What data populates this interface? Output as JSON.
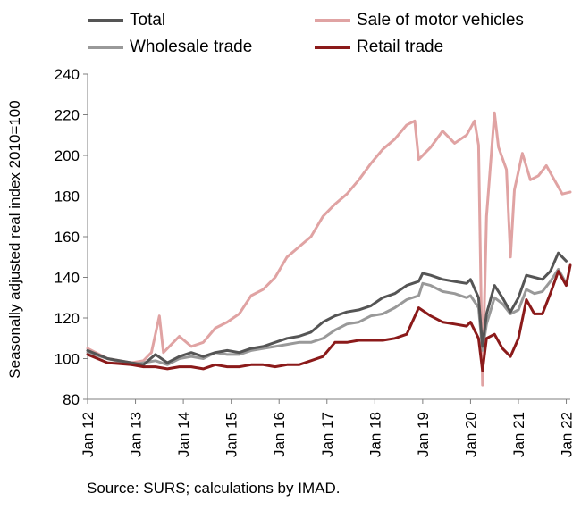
{
  "footer": {
    "source": "Source: SURS; calculations by IMAD."
  },
  "chart_data": {
    "type": "line",
    "title": "",
    "xlabel": "",
    "ylabel": "Seasonally adjusted real index 2010=100",
    "ylim": [
      80,
      240
    ],
    "yticks": [
      "80",
      "100",
      "120",
      "140",
      "160",
      "180",
      "200",
      "220",
      "240"
    ],
    "xticks": [
      "Jan 12",
      "Jan 13",
      "Jan 14",
      "Jan 15",
      "Jan 16",
      "Jan 17",
      "Jan 18",
      "Jan 19",
      "Jan 20",
      "Jan 21",
      "Jan 22"
    ],
    "x_start": "2012-01",
    "x_end": "2022-02",
    "grid": false,
    "legend": "top",
    "series": [
      {
        "name": "Total",
        "color": "#555555",
        "points": [
          [
            "2012-01",
            104
          ],
          [
            "2012-06",
            100
          ],
          [
            "2012-12",
            98
          ],
          [
            "2013-03",
            97
          ],
          [
            "2013-06",
            102
          ],
          [
            "2013-09",
            98
          ],
          [
            "2013-12",
            101
          ],
          [
            "2014-03",
            103
          ],
          [
            "2014-06",
            101
          ],
          [
            "2014-09",
            103
          ],
          [
            "2014-12",
            104
          ],
          [
            "2015-03",
            103
          ],
          [
            "2015-06",
            105
          ],
          [
            "2015-09",
            106
          ],
          [
            "2015-12",
            108
          ],
          [
            "2016-03",
            110
          ],
          [
            "2016-06",
            111
          ],
          [
            "2016-09",
            113
          ],
          [
            "2016-12",
            118
          ],
          [
            "2017-03",
            121
          ],
          [
            "2017-06",
            123
          ],
          [
            "2017-09",
            124
          ],
          [
            "2017-12",
            126
          ],
          [
            "2018-03",
            130
          ],
          [
            "2018-06",
            132
          ],
          [
            "2018-09",
            136
          ],
          [
            "2018-12",
            138
          ],
          [
            "2019-01",
            142
          ],
          [
            "2019-03",
            141
          ],
          [
            "2019-06",
            139
          ],
          [
            "2019-09",
            138
          ],
          [
            "2019-12",
            137
          ],
          [
            "2020-01",
            139
          ],
          [
            "2020-03",
            130
          ],
          [
            "2020-04",
            106
          ],
          [
            "2020-05",
            122
          ],
          [
            "2020-07",
            136
          ],
          [
            "2020-09",
            130
          ],
          [
            "2020-11",
            123
          ],
          [
            "2021-01",
            130
          ],
          [
            "2021-03",
            141
          ],
          [
            "2021-05",
            140
          ],
          [
            "2021-07",
            139
          ],
          [
            "2021-09",
            143
          ],
          [
            "2021-11",
            152
          ],
          [
            "2022-01",
            148
          ]
        ]
      },
      {
        "name": "Sale of motor vehicles",
        "color": "#e0a3a3",
        "points": [
          [
            "2012-01",
            105
          ],
          [
            "2012-06",
            100
          ],
          [
            "2012-12",
            98
          ],
          [
            "2013-03",
            99
          ],
          [
            "2013-05",
            103
          ],
          [
            "2013-07",
            121
          ],
          [
            "2013-08",
            103
          ],
          [
            "2013-12",
            111
          ],
          [
            "2014-03",
            106
          ],
          [
            "2014-06",
            108
          ],
          [
            "2014-09",
            115
          ],
          [
            "2014-12",
            118
          ],
          [
            "2015-03",
            122
          ],
          [
            "2015-06",
            131
          ],
          [
            "2015-09",
            134
          ],
          [
            "2015-12",
            140
          ],
          [
            "2016-03",
            150
          ],
          [
            "2016-06",
            155
          ],
          [
            "2016-09",
            160
          ],
          [
            "2016-12",
            170
          ],
          [
            "2017-03",
            176
          ],
          [
            "2017-06",
            181
          ],
          [
            "2017-09",
            188
          ],
          [
            "2017-12",
            196
          ],
          [
            "2018-03",
            203
          ],
          [
            "2018-06",
            208
          ],
          [
            "2018-09",
            215
          ],
          [
            "2018-11",
            217
          ],
          [
            "2018-12",
            198
          ],
          [
            "2019-03",
            204
          ],
          [
            "2019-06",
            212
          ],
          [
            "2019-09",
            206
          ],
          [
            "2019-12",
            210
          ],
          [
            "2020-02",
            217
          ],
          [
            "2020-03",
            205
          ],
          [
            "2020-04",
            87
          ],
          [
            "2020-05",
            170
          ],
          [
            "2020-07",
            221
          ],
          [
            "2020-08",
            204
          ],
          [
            "2020-10",
            193
          ],
          [
            "2020-11",
            150
          ],
          [
            "2020-12",
            183
          ],
          [
            "2021-02",
            201
          ],
          [
            "2021-04",
            188
          ],
          [
            "2021-06",
            190
          ],
          [
            "2021-08",
            195
          ],
          [
            "2021-10",
            188
          ],
          [
            "2021-12",
            181
          ],
          [
            "2022-02",
            182
          ]
        ]
      },
      {
        "name": "Wholesale trade",
        "color": "#999999",
        "points": [
          [
            "2012-01",
            103
          ],
          [
            "2012-06",
            100
          ],
          [
            "2012-12",
            97
          ],
          [
            "2013-03",
            98
          ],
          [
            "2013-06",
            99
          ],
          [
            "2013-09",
            97
          ],
          [
            "2013-12",
            100
          ],
          [
            "2014-03",
            101
          ],
          [
            "2014-06",
            100
          ],
          [
            "2014-09",
            103
          ],
          [
            "2014-12",
            102
          ],
          [
            "2015-03",
            102
          ],
          [
            "2015-06",
            104
          ],
          [
            "2015-09",
            105
          ],
          [
            "2015-12",
            106
          ],
          [
            "2016-03",
            107
          ],
          [
            "2016-06",
            108
          ],
          [
            "2016-09",
            108
          ],
          [
            "2016-12",
            110
          ],
          [
            "2017-03",
            114
          ],
          [
            "2017-06",
            117
          ],
          [
            "2017-09",
            118
          ],
          [
            "2017-12",
            121
          ],
          [
            "2018-03",
            122
          ],
          [
            "2018-06",
            125
          ],
          [
            "2018-09",
            129
          ],
          [
            "2018-12",
            131
          ],
          [
            "2019-01",
            137
          ],
          [
            "2019-03",
            136
          ],
          [
            "2019-06",
            133
          ],
          [
            "2019-09",
            132
          ],
          [
            "2019-12",
            130
          ],
          [
            "2020-01",
            131
          ],
          [
            "2020-03",
            125
          ],
          [
            "2020-04",
            104
          ],
          [
            "2020-05",
            117
          ],
          [
            "2020-07",
            130
          ],
          [
            "2020-09",
            127
          ],
          [
            "2020-11",
            122
          ],
          [
            "2021-01",
            124
          ],
          [
            "2021-03",
            134
          ],
          [
            "2021-05",
            132
          ],
          [
            "2021-07",
            133
          ],
          [
            "2021-09",
            138
          ],
          [
            "2021-11",
            144
          ],
          [
            "2022-01",
            137
          ]
        ]
      },
      {
        "name": "Retail trade",
        "color": "#8b1a1a",
        "points": [
          [
            "2012-01",
            102
          ],
          [
            "2012-06",
            98
          ],
          [
            "2012-12",
            97
          ],
          [
            "2013-03",
            96
          ],
          [
            "2013-06",
            96
          ],
          [
            "2013-09",
            95
          ],
          [
            "2013-12",
            96
          ],
          [
            "2014-03",
            96
          ],
          [
            "2014-06",
            95
          ],
          [
            "2014-09",
            97
          ],
          [
            "2014-12",
            96
          ],
          [
            "2015-03",
            96
          ],
          [
            "2015-06",
            97
          ],
          [
            "2015-09",
            97
          ],
          [
            "2015-12",
            96
          ],
          [
            "2016-03",
            97
          ],
          [
            "2016-06",
            97
          ],
          [
            "2016-09",
            99
          ],
          [
            "2016-12",
            101
          ],
          [
            "2017-03",
            108
          ],
          [
            "2017-06",
            108
          ],
          [
            "2017-09",
            109
          ],
          [
            "2017-12",
            109
          ],
          [
            "2018-03",
            109
          ],
          [
            "2018-06",
            110
          ],
          [
            "2018-09",
            112
          ],
          [
            "2018-12",
            125
          ],
          [
            "2019-03",
            121
          ],
          [
            "2019-06",
            118
          ],
          [
            "2019-09",
            117
          ],
          [
            "2019-12",
            116
          ],
          [
            "2020-01",
            118
          ],
          [
            "2020-03",
            110
          ],
          [
            "2020-04",
            94
          ],
          [
            "2020-05",
            110
          ],
          [
            "2020-07",
            112
          ],
          [
            "2020-09",
            105
          ],
          [
            "2020-11",
            101
          ],
          [
            "2021-01",
            110
          ],
          [
            "2021-03",
            129
          ],
          [
            "2021-05",
            122
          ],
          [
            "2021-07",
            122
          ],
          [
            "2021-09",
            132
          ],
          [
            "2021-11",
            143
          ],
          [
            "2022-01",
            136
          ],
          [
            "2022-02",
            146
          ]
        ]
      }
    ]
  }
}
